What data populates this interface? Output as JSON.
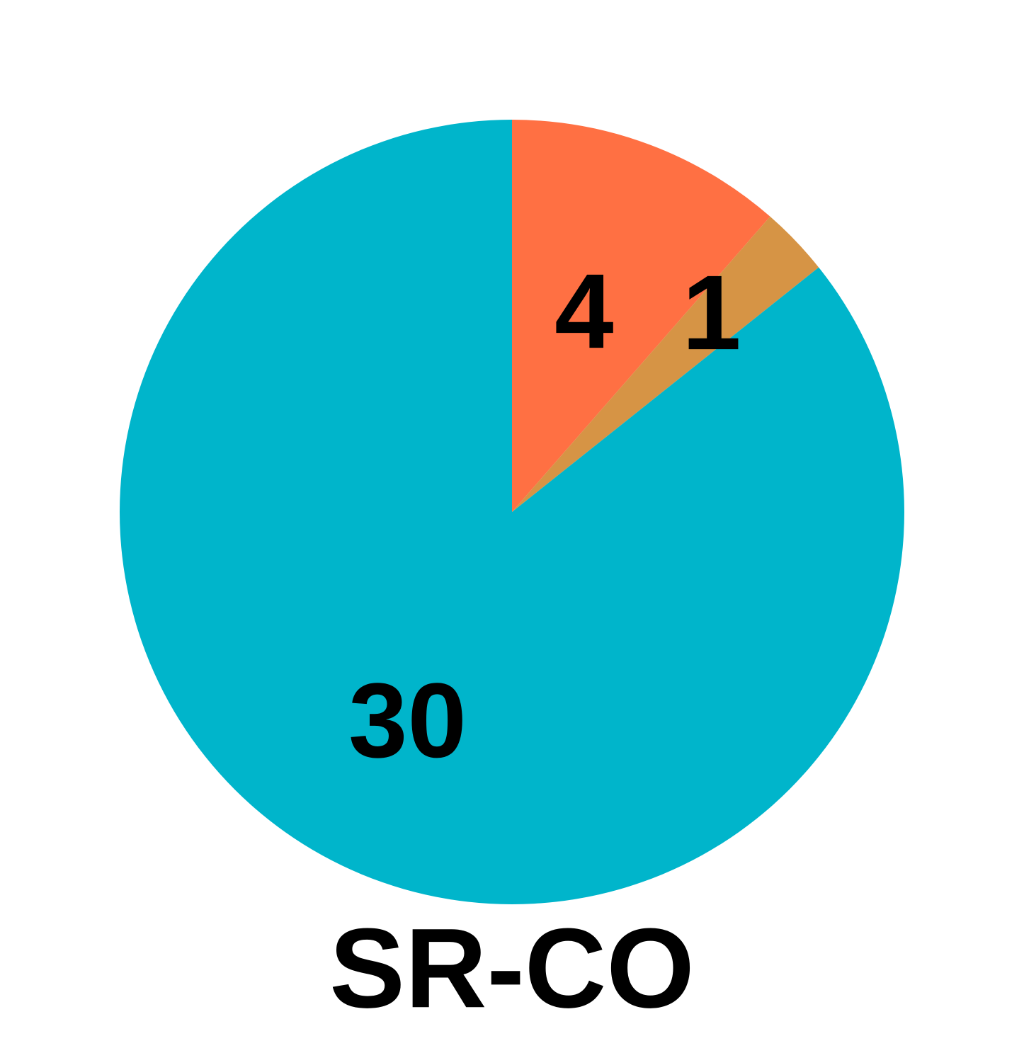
{
  "chart_data": {
    "type": "pie",
    "title": "SR-CO",
    "slices": [
      {
        "value": 4,
        "label": "4",
        "color": "#ff7043"
      },
      {
        "value": 1,
        "label": "1",
        "color": "#d69445"
      },
      {
        "value": 30,
        "label": "30",
        "color": "#00b5cb"
      }
    ],
    "start_angle_deg": 0,
    "direction": "clockwise"
  }
}
